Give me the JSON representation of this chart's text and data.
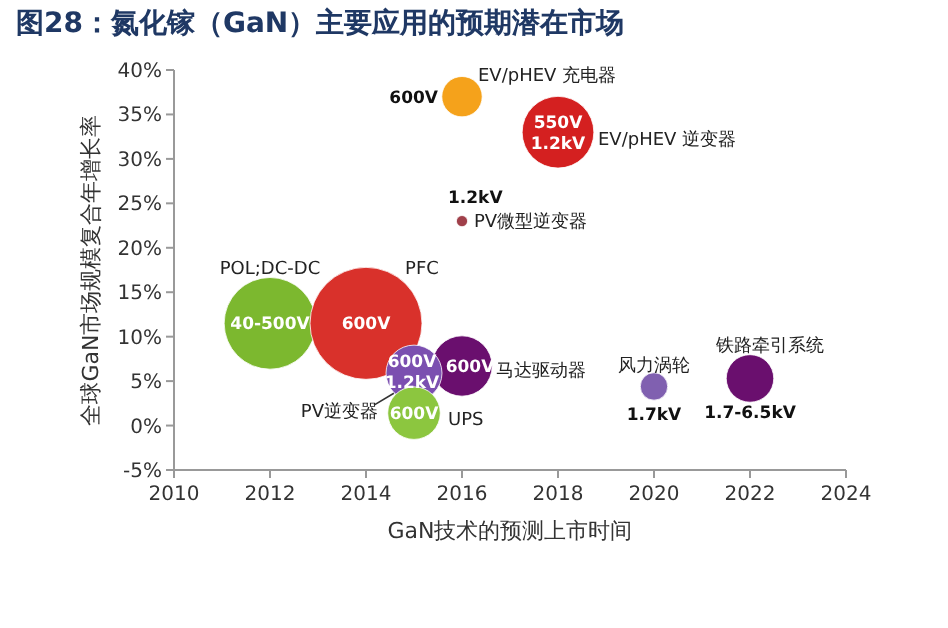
{
  "chart_data": {
    "type": "bubble",
    "title": "图28：氮化镓（GaN）主要应用的预期潜在市场",
    "xlabel": "GaN技术的预测上市时间",
    "ylabel": "全球GaN市场规模复合年增长率",
    "xlim": [
      2010,
      2024
    ],
    "xticks": [
      2010,
      2012,
      2014,
      2016,
      2018,
      2020,
      2022,
      2024
    ],
    "ylim": [
      -5,
      40
    ],
    "yticks": [
      {
        "value": -5,
        "label": "-5%"
      },
      {
        "value": 0,
        "label": "0%"
      },
      {
        "value": 5,
        "label": "5%"
      },
      {
        "value": 10,
        "label": "10%"
      },
      {
        "value": 15,
        "label": "15%"
      },
      {
        "value": 20,
        "label": "20%"
      },
      {
        "value": 25,
        "label": "25%"
      },
      {
        "value": 30,
        "label": "30%"
      },
      {
        "value": 35,
        "label": "35%"
      },
      {
        "value": 40,
        "label": "40%"
      }
    ],
    "grid": false,
    "legend": false,
    "series": [
      {
        "name": "POL;DC-DC",
        "color": "#7cb82f",
        "x": [
          2012
        ],
        "values": [
          11.5
        ],
        "sizes": [
          0.67
        ]
      },
      {
        "name": "PFC",
        "color": "#d9312b",
        "x": [
          2014
        ],
        "values": [
          11.5
        ],
        "sizes": [
          1
        ]
      },
      {
        "name": "马达驱动器",
        "color": "#6a0f6e",
        "x": [
          2016
        ],
        "values": [
          6.7
        ],
        "sizes": [
          0.29
        ]
      },
      {
        "name": "PV逆变器",
        "color": "#7b4fb0",
        "x": [
          2015
        ],
        "values": [
          5.9
        ],
        "sizes": [
          0.25
        ]
      },
      {
        "name": "UPS",
        "color": "#8cc63f",
        "x": [
          2015
        ],
        "values": [
          1.4
        ],
        "sizes": [
          0.22
        ]
      },
      {
        "name": "EV/pHEV 充电器",
        "color": "#f5a21b",
        "x": [
          2016
        ],
        "values": [
          37
        ],
        "sizes": [
          0.13
        ]
      },
      {
        "name": "EV/pHEV 逆变器",
        "color": "#d42020",
        "x": [
          2018
        ],
        "values": [
          33
        ],
        "sizes": [
          0.41
        ]
      },
      {
        "name": "PV微型逆变器",
        "color": "#a0404a",
        "x": [
          2016
        ],
        "values": [
          23
        ],
        "sizes": [
          0.01
        ]
      },
      {
        "name": "风力涡轮",
        "color": "#8060b0",
        "x": [
          2020
        ],
        "values": [
          4.4
        ],
        "sizes": [
          0.06
        ]
      },
      {
        "name": "铁路牵引系统",
        "color": "#6a0f6e",
        "x": [
          2022
        ],
        "values": [
          5.3
        ],
        "sizes": [
          0.18
        ]
      }
    ],
    "annotations": [
      {
        "text": "40-500V",
        "x": 2012,
        "y": 11.5
      },
      {
        "text": "600V",
        "x": 2014,
        "y": 11.5
      },
      {
        "text": "600V",
        "x": 2016,
        "y": 6.7
      },
      {
        "text": "600V",
        "x": 2015,
        "y": 5.9
      },
      {
        "text": "1.2kV",
        "x": 2015,
        "y": 5.9
      },
      {
        "text": "600V",
        "x": 2015,
        "y": 1.4
      },
      {
        "text": "600V",
        "x": 2016,
        "y": 37
      },
      {
        "text": "550V",
        "x": 2018,
        "y": 33
      },
      {
        "text": "1.2kV",
        "x": 2018,
        "y": 33
      },
      {
        "text": "1.2kV",
        "x": 2016,
        "y": 23
      },
      {
        "text": "1.7kV",
        "x": 2020,
        "y": 4.4
      },
      {
        "text": "1.7-6.5kV",
        "x": 2022,
        "y": 5.3
      }
    ]
  }
}
